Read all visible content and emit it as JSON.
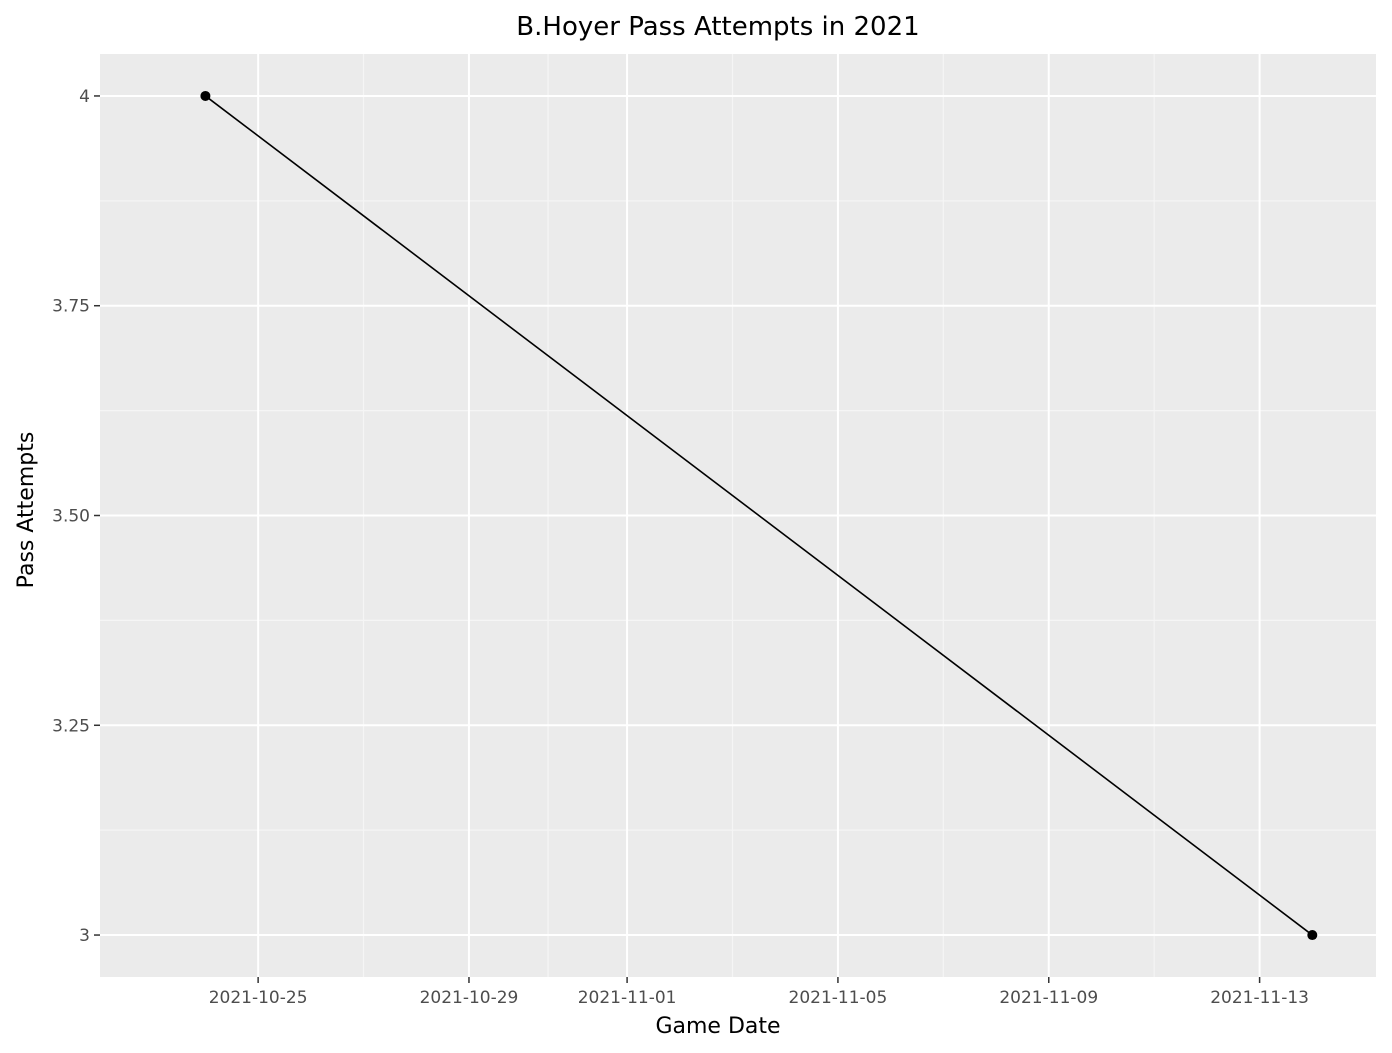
{
  "chart_data": {
    "type": "line",
    "title": "B.Hoyer Pass Attempts in 2021",
    "xlabel": "Game Date",
    "ylabel": "Pass Attempts",
    "x_is_date": true,
    "xlim": [
      "2021-10-22T00:00:00",
      "2021-11-15T05:00:00"
    ],
    "ylim": [
      2.95,
      4.05
    ],
    "x_ticks": [
      {
        "value": "2021-10-25",
        "label": "2021-10-25"
      },
      {
        "value": "2021-10-29",
        "label": "2021-10-29"
      },
      {
        "value": "2021-11-01",
        "label": "2021-11-01"
      },
      {
        "value": "2021-11-05",
        "label": "2021-11-05"
      },
      {
        "value": "2021-11-09",
        "label": "2021-11-09"
      },
      {
        "value": "2021-11-13",
        "label": "2021-11-13"
      }
    ],
    "y_ticks": [
      {
        "value": 3,
        "label": "3"
      },
      {
        "value": 3.25,
        "label": "3.25"
      },
      {
        "value": 3.5,
        "label": "3.50"
      },
      {
        "value": 3.75,
        "label": "3.75"
      },
      {
        "value": 4,
        "label": "4"
      }
    ],
    "grid": true,
    "colors": {
      "panel_background": "#ebebeb",
      "grid_major": "#ffffff",
      "grid_minor": "#f5f5f5",
      "line": "#000000",
      "points": "#000000",
      "tick_text": "#4d4d4d",
      "tick_mark": "#333333"
    },
    "series": [
      {
        "x": [
          "2021-10-24",
          "2021-11-14"
        ],
        "y": [
          4,
          3
        ]
      }
    ]
  }
}
